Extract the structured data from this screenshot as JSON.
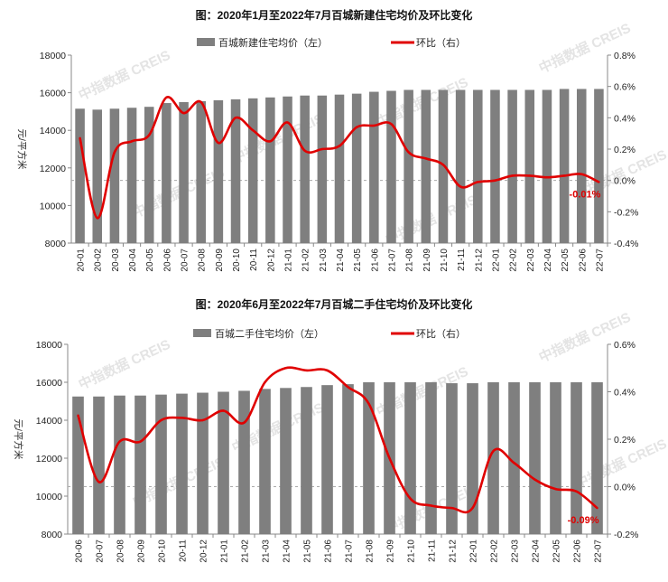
{
  "colors": {
    "bar": "#7f7f7f",
    "line": "#e00000",
    "axis": "#888888",
    "zero": "#aaaaaa"
  },
  "watermark": "中指数据 CREIS",
  "chart_data": [
    {
      "type": "bar+line",
      "title": "图：2020年1月至2022年7月百城新建住宅均价及环比变化",
      "ylabel": "元/平方米",
      "ylim": [
        8000,
        18000
      ],
      "y_ticks": [
        "8000",
        "10000",
        "12000",
        "14000",
        "16000",
        "18000"
      ],
      "y2lim": [
        -0.4,
        0.8
      ],
      "y2_ticks": [
        "-0.4%",
        "-0.2%",
        "0.0%",
        "0.2%",
        "0.4%",
        "0.6%",
        "0.8%"
      ],
      "legend": {
        "bar": "百城新建住宅均价（左）",
        "line": "环比（右）",
        "placement": "top"
      },
      "last_label": "-0.01%",
      "categories": [
        "20-01",
        "20-02",
        "20-03",
        "20-04",
        "20-05",
        "20-06",
        "20-07",
        "20-08",
        "20-09",
        "20-10",
        "20-11",
        "20-12",
        "21-01",
        "21-02",
        "21-03",
        "21-04",
        "21-05",
        "21-06",
        "21-07",
        "21-08",
        "21-09",
        "21-10",
        "21-11",
        "21-12",
        "22-01",
        "22-02",
        "22-03",
        "22-04",
        "22-05",
        "22-06",
        "22-07"
      ],
      "series": [
        {
          "name": "百城新建住宅均价（左）",
          "axis": "left",
          "values": [
            15150,
            15100,
            15150,
            15200,
            15250,
            15450,
            15500,
            15550,
            15600,
            15650,
            15700,
            15750,
            15800,
            15850,
            15850,
            15900,
            15950,
            16050,
            16100,
            16150,
            16150,
            16150,
            16150,
            16150,
            16150,
            16150,
            16150,
            16150,
            16200,
            16200,
            16200
          ]
        },
        {
          "name": "环比（右）",
          "axis": "right",
          "values": [
            0.27,
            -0.24,
            0.18,
            0.25,
            0.29,
            0.53,
            0.43,
            0.5,
            0.24,
            0.4,
            0.32,
            0.25,
            0.37,
            0.19,
            0.2,
            0.22,
            0.34,
            0.35,
            0.36,
            0.18,
            0.14,
            0.1,
            -0.04,
            -0.01,
            0.0,
            0.03,
            0.03,
            0.02,
            0.03,
            0.04,
            -0.01
          ]
        }
      ]
    },
    {
      "type": "bar+line",
      "title": "图：2020年6月至2022年7月百城二手住宅均价及环比变化",
      "ylabel": "元/平方米",
      "ylim": [
        8000,
        18000
      ],
      "y_ticks": [
        "8000",
        "10000",
        "12000",
        "14000",
        "16000",
        "18000"
      ],
      "y2lim": [
        -0.2,
        0.6
      ],
      "y2_ticks": [
        "-0.2%",
        "0.0%",
        "0.2%",
        "0.4%",
        "0.6%"
      ],
      "legend": {
        "bar": "百城二手住宅均价（左）",
        "line": "环比（右）",
        "placement": "top"
      },
      "last_label": "-0.09%",
      "categories": [
        "20-06",
        "20-07",
        "20-08",
        "20-09",
        "20-10",
        "20-11",
        "20-12",
        "21-01",
        "21-02",
        "21-03",
        "21-04",
        "21-05",
        "21-06",
        "21-07",
        "21-08",
        "21-09",
        "21-10",
        "21-11",
        "21-12",
        "22-01",
        "22-02",
        "22-03",
        "22-04",
        "22-05",
        "22-06",
        "22-07"
      ],
      "series": [
        {
          "name": "百城二手住宅均价（左）",
          "axis": "left",
          "values": [
            15250,
            15250,
            15300,
            15300,
            15350,
            15400,
            15450,
            15500,
            15550,
            15650,
            15700,
            15750,
            15850,
            15900,
            16000,
            16000,
            16000,
            16000,
            15950,
            15950,
            16000,
            16000,
            16000,
            16000,
            16000,
            16000
          ]
        },
        {
          "name": "环比（右）",
          "axis": "right",
          "values": [
            0.3,
            0.02,
            0.19,
            0.19,
            0.28,
            0.29,
            0.28,
            0.32,
            0.27,
            0.44,
            0.5,
            0.49,
            0.49,
            0.42,
            0.35,
            0.12,
            -0.05,
            -0.08,
            -0.09,
            -0.09,
            0.15,
            0.1,
            0.03,
            -0.01,
            -0.02,
            -0.09
          ]
        }
      ]
    }
  ]
}
